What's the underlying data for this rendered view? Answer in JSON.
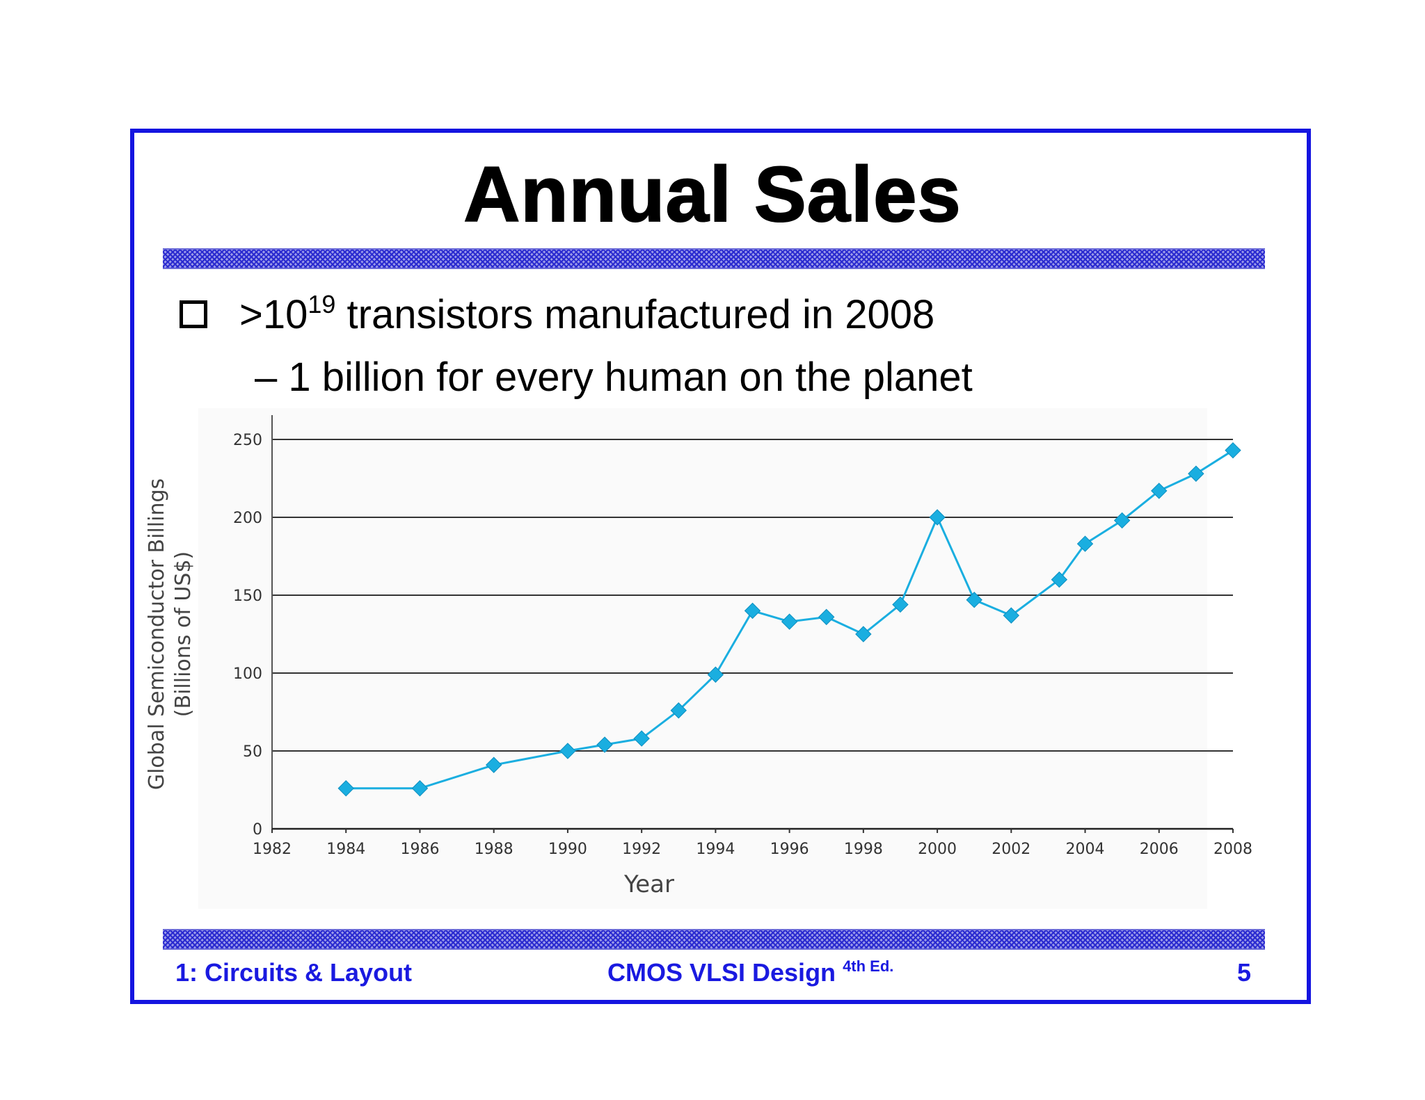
{
  "slide": {
    "title": "Annual Sales",
    "bullet": {
      "prefix": ">10",
      "superscript": "19",
      "rest": " transistors manufactured in 2008"
    },
    "sub_bullet": "– 1 billion for every human on the planet"
  },
  "footer": {
    "left": "1: Circuits & Layout",
    "center": "CMOS VLSI Design",
    "center_sup": "4th Ed.",
    "right": "5"
  },
  "colors": {
    "frame": "#1414e0",
    "footer_text": "#1a1ae0",
    "series": "#1aaee0"
  },
  "chart_data": {
    "type": "line",
    "title": "",
    "xlabel": "Year",
    "ylabel": "Global Semiconductor Billings",
    "ylabel2": "(Billions of US$)",
    "xlim": [
      1982,
      2008
    ],
    "ylim": [
      0,
      250
    ],
    "x_ticks": [
      "1982",
      "1984",
      "1986",
      "1988",
      "1990",
      "1992",
      "1994",
      "1996",
      "1998",
      "2000",
      "2002",
      "2004",
      "2006",
      "2008"
    ],
    "y_ticks": [
      "0",
      "50",
      "100",
      "150",
      "200",
      "250"
    ],
    "grid": true,
    "marker": "diamond",
    "series": [
      {
        "x": [
          1984,
          1986,
          1988,
          1990,
          1991,
          1992,
          1993,
          1994,
          1995,
          1996,
          1997,
          1998,
          1999,
          2000,
          2001,
          2002,
          2003.3,
          2004,
          2005,
          2006,
          2007,
          2008
        ],
        "y": [
          26,
          26,
          41,
          50,
          54,
          58,
          76,
          99,
          140,
          133,
          136,
          125,
          144,
          200,
          147,
          137,
          160,
          183,
          198,
          217,
          228,
          243
        ]
      }
    ]
  }
}
